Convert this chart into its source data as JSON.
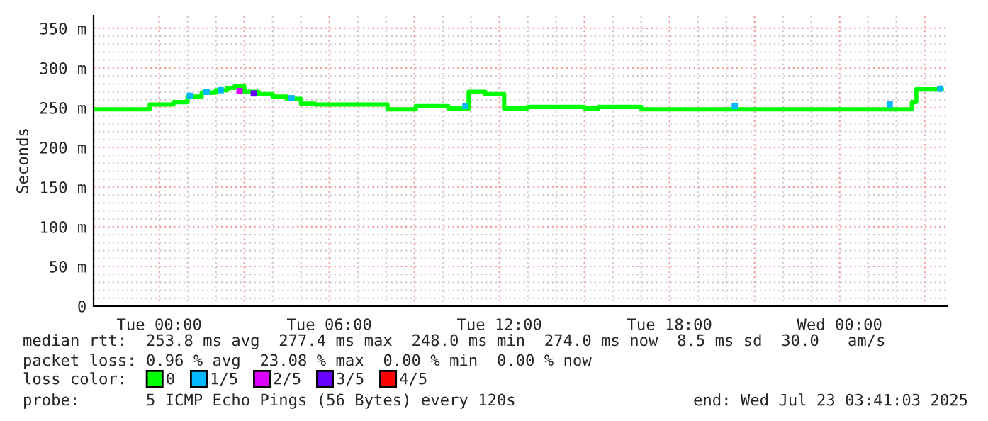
{
  "chart_data": {
    "type": "step",
    "ylabel": "Seconds",
    "xlim": [
      "2025-07-21T21:41",
      "2025-07-23T03:47"
    ],
    "ylim": [
      0,
      366
    ],
    "yticks": [
      0,
      {
        "value": 50,
        "label": "50 m"
      },
      {
        "value": 100,
        "label": "100 m"
      },
      {
        "value": 150,
        "label": "150 m"
      },
      {
        "value": 200,
        "label": "200 m"
      },
      {
        "value": 250,
        "label": "250 m"
      },
      {
        "value": 300,
        "label": "300 m"
      },
      {
        "value": 350,
        "label": "350 m"
      }
    ],
    "xticks": [
      {
        "value": "2025-07-22T00:00",
        "label": "Tue 00:00"
      },
      {
        "value": "2025-07-22T03:00",
        "label": null
      },
      {
        "value": "2025-07-22T06:00",
        "label": "Tue 06:00"
      },
      {
        "value": "2025-07-22T09:00",
        "label": null
      },
      {
        "value": "2025-07-22T12:00",
        "label": "Tue 12:00"
      },
      {
        "value": "2025-07-22T15:00",
        "label": null
      },
      {
        "value": "2025-07-22T18:00",
        "label": "Tue 18:00"
      },
      {
        "value": "2025-07-22T21:00",
        "label": null
      },
      {
        "value": "2025-07-23T00:00",
        "label": "Wed 00:00"
      },
      {
        "value": "2025-07-23T03:00",
        "label": null
      }
    ],
    "grid": true,
    "legend": "bottom",
    "series": [
      {
        "color": "#00ff00",
        "x": [
          "2025-07-21T21:41",
          "2025-07-21T23:40",
          "2025-07-22T00:30",
          "2025-07-22T01:00",
          "2025-07-22T01:30",
          "2025-07-22T02:00",
          "2025-07-22T02:24",
          "2025-07-22T02:40",
          "2025-07-22T03:00",
          "2025-07-22T03:30",
          "2025-07-22T04:00",
          "2025-07-22T04:30",
          "2025-07-22T05:00",
          "2025-07-22T05:30",
          "2025-07-22T08:03",
          "2025-07-22T09:03",
          "2025-07-22T10:12",
          "2025-07-22T10:55",
          "2025-07-22T11:30",
          "2025-07-22T12:10",
          "2025-07-22T13:00",
          "2025-07-22T15:00",
          "2025-07-22T15:30",
          "2025-07-22T17:00",
          "2025-07-23T02:33",
          "2025-07-23T02:42",
          "2025-07-23T03:36"
        ],
        "values": [
          248,
          254,
          257,
          264,
          269,
          272,
          275,
          277,
          270,
          267,
          264,
          261,
          255,
          254,
          248,
          252,
          249,
          270,
          267,
          249,
          251,
          249,
          251,
          248,
          257,
          273,
          274
        ]
      },
      {
        "name": "0",
        "type": "scatter",
        "marker": "square",
        "color": "#00ff00"
      },
      {
        "name": "1/5",
        "type": "scatter",
        "marker": "square",
        "color": "#00b8ff",
        "x": [
          "2025-07-22T01:05",
          "2025-07-22T01:40",
          "2025-07-22T02:10",
          "2025-07-22T04:40",
          "2025-07-22T10:48",
          "2025-07-22T20:18",
          "2025-07-23T01:46",
          "2025-07-23T03:33"
        ],
        "values": [
          265,
          270,
          272,
          262,
          252,
          252,
          254,
          274
        ]
      },
      {
        "name": "2/5",
        "type": "scatter",
        "marker": "square",
        "color": "#dd00ff",
        "x": [
          "2025-07-22T02:50"
        ],
        "values": [
          271
        ]
      },
      {
        "name": "3/5",
        "type": "scatter",
        "marker": "square",
        "color": "#6600ff",
        "x": [
          "2025-07-22T03:20"
        ],
        "values": [
          268
        ]
      },
      {
        "name": "4/5",
        "type": "scatter",
        "marker": "square",
        "color": "#ff0000"
      }
    ],
    "annotations": [
      "median rtt:  253.8 ms avg  277.4 ms max  248.0 ms min  274.0 ms now  8.5 ms sd  30.0   am/s",
      "packet loss: 0.96 % avg  23.08 % max  0.00 % min  0.00 % now",
      "loss color:",
      "probe:       5 ICMP Echo Pings (56 Bytes) every 120s",
      "end: Wed Jul 23 03:41:03 2025"
    ]
  }
}
